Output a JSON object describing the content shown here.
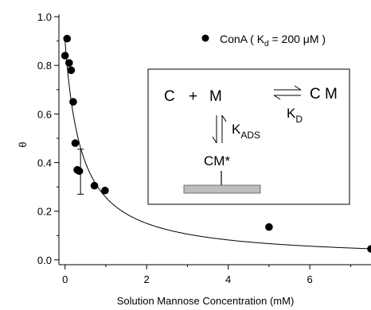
{
  "chart_data": {
    "type": "scatter",
    "xlabel": "Solution Mannose Concentration (mM)",
    "ylabel": "θ",
    "xlim": [
      -0.15,
      7.5
    ],
    "ylim": [
      -0.02,
      1.01
    ],
    "x_ticks": [
      "0",
      "2",
      "4",
      "6"
    ],
    "x_tick_values": [
      0,
      2,
      4,
      6
    ],
    "y_ticks": [
      "0.0",
      "0.2",
      "0.4",
      "0.6",
      "0.8",
      "1.0"
    ],
    "y_tick_values": [
      0.0,
      0.2,
      0.4,
      0.6,
      0.8,
      1.0
    ],
    "grid": false,
    "legend_position": "top-right",
    "series": [
      {
        "name": "ConA",
        "legend_label_parts": [
          "ConA ( K",
          "d",
          " = 200 μM )"
        ],
        "marker": "filled-circle",
        "x": [
          0.0,
          0.05,
          0.1,
          0.15,
          0.2,
          0.25,
          0.3,
          0.35,
          0.72,
          0.98,
          5.0,
          7.5
        ],
        "y": [
          0.84,
          0.91,
          0.81,
          0.78,
          0.65,
          0.48,
          0.37,
          0.365,
          0.305,
          0.285,
          0.135,
          0.045
        ]
      }
    ],
    "error_bar": {
      "x": 0.38,
      "low": 0.27,
      "high": 0.455
    },
    "fit_curve": {
      "equation": "theta = 0.9 / (1 + x / 0.4)",
      "a": 0.9,
      "k": 0.4
    },
    "inset": {
      "C": "C",
      "plus": "+",
      "M": "M",
      "CM": "C M",
      "K_D_main": "K",
      "K_D_sub": "D",
      "K_ADS_main": "K",
      "K_ADS_sub": "ADS",
      "CM_star": "CM*"
    }
  }
}
